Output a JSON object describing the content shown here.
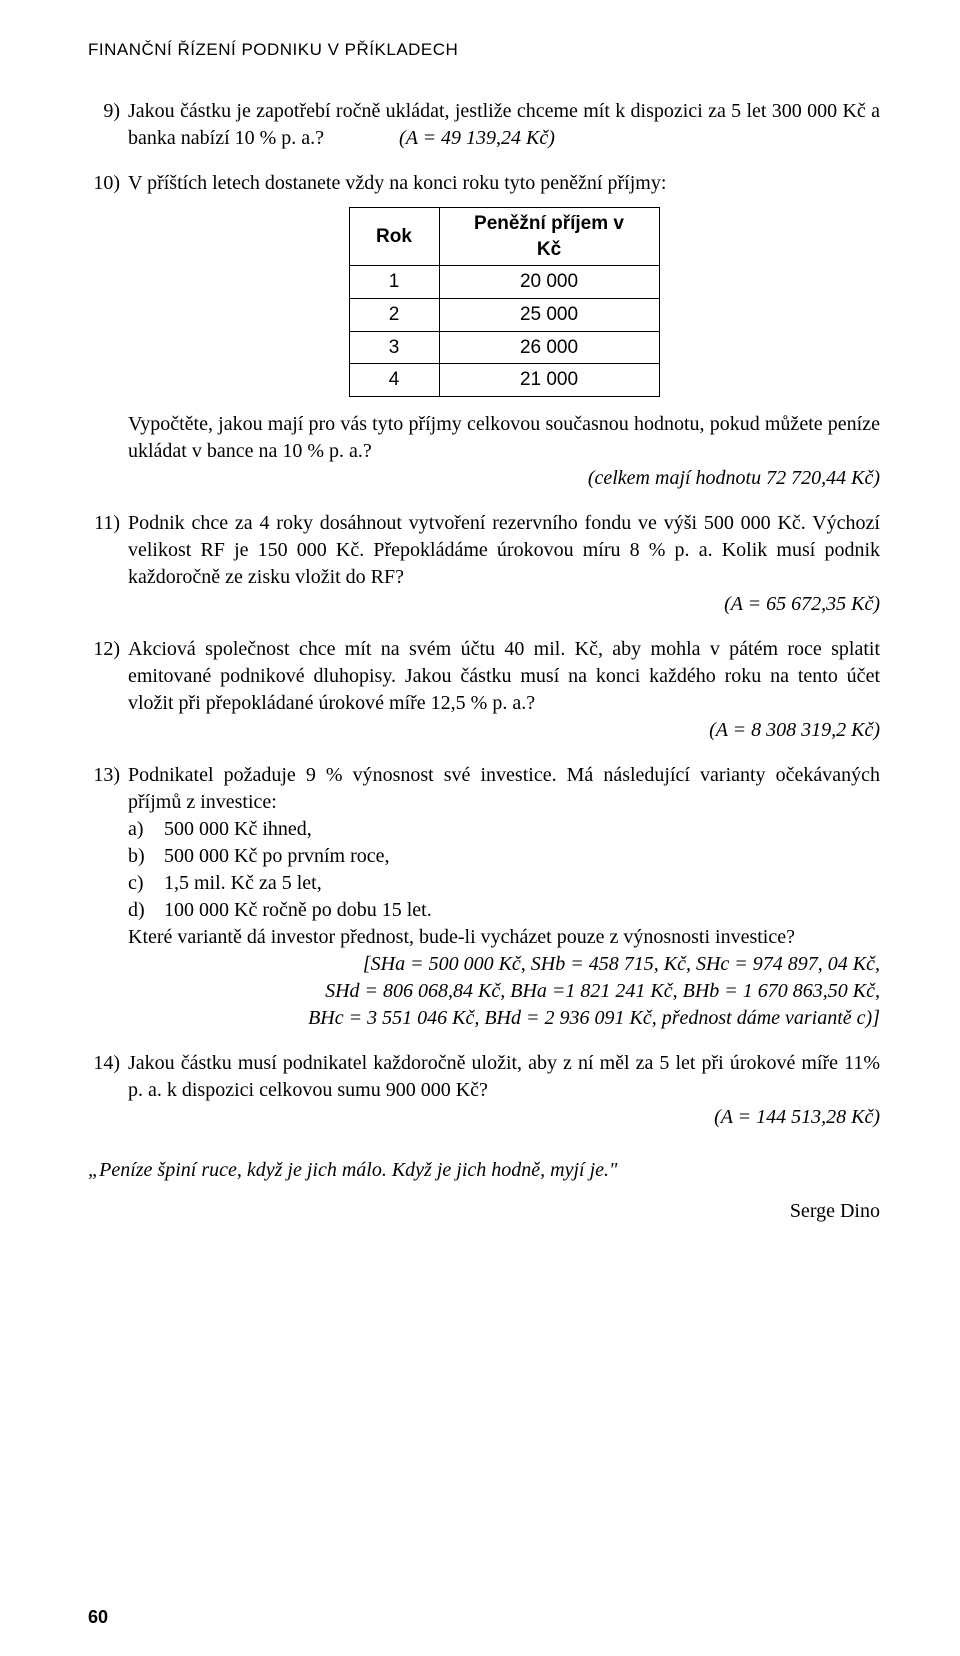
{
  "header": "FINANČNÍ ŘÍZENÍ PODNIKU V PŘÍKLADECH",
  "pagenum": "60",
  "q9": {
    "num": "9)",
    "text": "Jakou částku je zapotřebí ročně ukládat, jestliže chceme mít k dispozici za 5 let 300 000 Kč a banka nabízí 10 % p. a.?",
    "answer": "(A = 49 139,24 Kč)"
  },
  "q10": {
    "num": "10)",
    "intro": "V příštích letech dostanete vždy na konci roku tyto peněžní příjmy:",
    "table": {
      "headers": [
        "Rok",
        "Peněžní příjem v Kč"
      ],
      "rows": [
        [
          "1",
          "20 000"
        ],
        [
          "2",
          "25 000"
        ],
        [
          "3",
          "26 000"
        ],
        [
          "4",
          "21 000"
        ]
      ]
    },
    "text2": "Vypočtěte, jakou mají pro vás tyto příjmy celkovou současnou hodnotu, pokud můžete peníze ukládat v bance na 10 % p. a.?",
    "answer": "(celkem mají hodnotu 72 720,44 Kč)"
  },
  "q11": {
    "num": "11)",
    "text": "Podnik chce za 4 roky dosáhnout vytvoření rezervního fondu ve výši 500 000 Kč. Výchozí velikost RF je 150 000 Kč. Přepokládáme úrokovou míru 8 % p. a. Kolik musí podnik každoročně ze zisku vložit do RF?",
    "answer": "(A = 65 672,35 Kč)"
  },
  "q12": {
    "num": "12)",
    "text": "Akciová společnost chce mít na svém účtu 40 mil. Kč, aby mohla v pátém roce splatit emitované podnikové dluhopisy. Jakou částku musí na konci každého roku na tento účet vložit při přepokládané úrokové míře 12,5 % p. a.?",
    "answer": "(A = 8 308 319,2 Kč)"
  },
  "q13": {
    "num": "13)",
    "intro": "Podnikatel požaduje 9 % výnosnost své investice. Má následující varianty očekávaných příjmů z investice:",
    "items": {
      "a": {
        "letter": "a)",
        "text": "500 000 Kč ihned,"
      },
      "b": {
        "letter": "b)",
        "text": "500 000 Kč po prvním roce,"
      },
      "c": {
        "letter": "c)",
        "text": "1,5 mil. Kč za 5 let,"
      },
      "d": {
        "letter": "d)",
        "text": "100 000 Kč ročně po dobu 15 let."
      }
    },
    "text2": "Které variantě dá investor přednost, bude-li vycházet pouze z výnosnosti investice?",
    "ans_l1": "[SHa = 500 000 Kč, SHb = 458 715, Kč, SHc = 974 897, 04 Kč,",
    "ans_l2": "SHd = 806 068,84 Kč, BHa =1 821 241 Kč, BHb = 1 670 863,50 Kč,",
    "ans_l3": "BHc = 3 551 046 Kč, BHd = 2 936 091 Kč, přednost dáme variantě c)]"
  },
  "q14": {
    "num": "14)",
    "text": "Jakou částku musí podnikatel každoročně uložit, aby z ní měl za 5 let při úrokové míře 11% p. a. k dispozici celkovou sumu 900 000 Kč?",
    "answer": "(A = 144 513,28 Kč)"
  },
  "quote": "„Peníze špiní ruce, když je jich málo. Když je jich hodně, myjí je.\"",
  "author": "Serge Dino"
}
